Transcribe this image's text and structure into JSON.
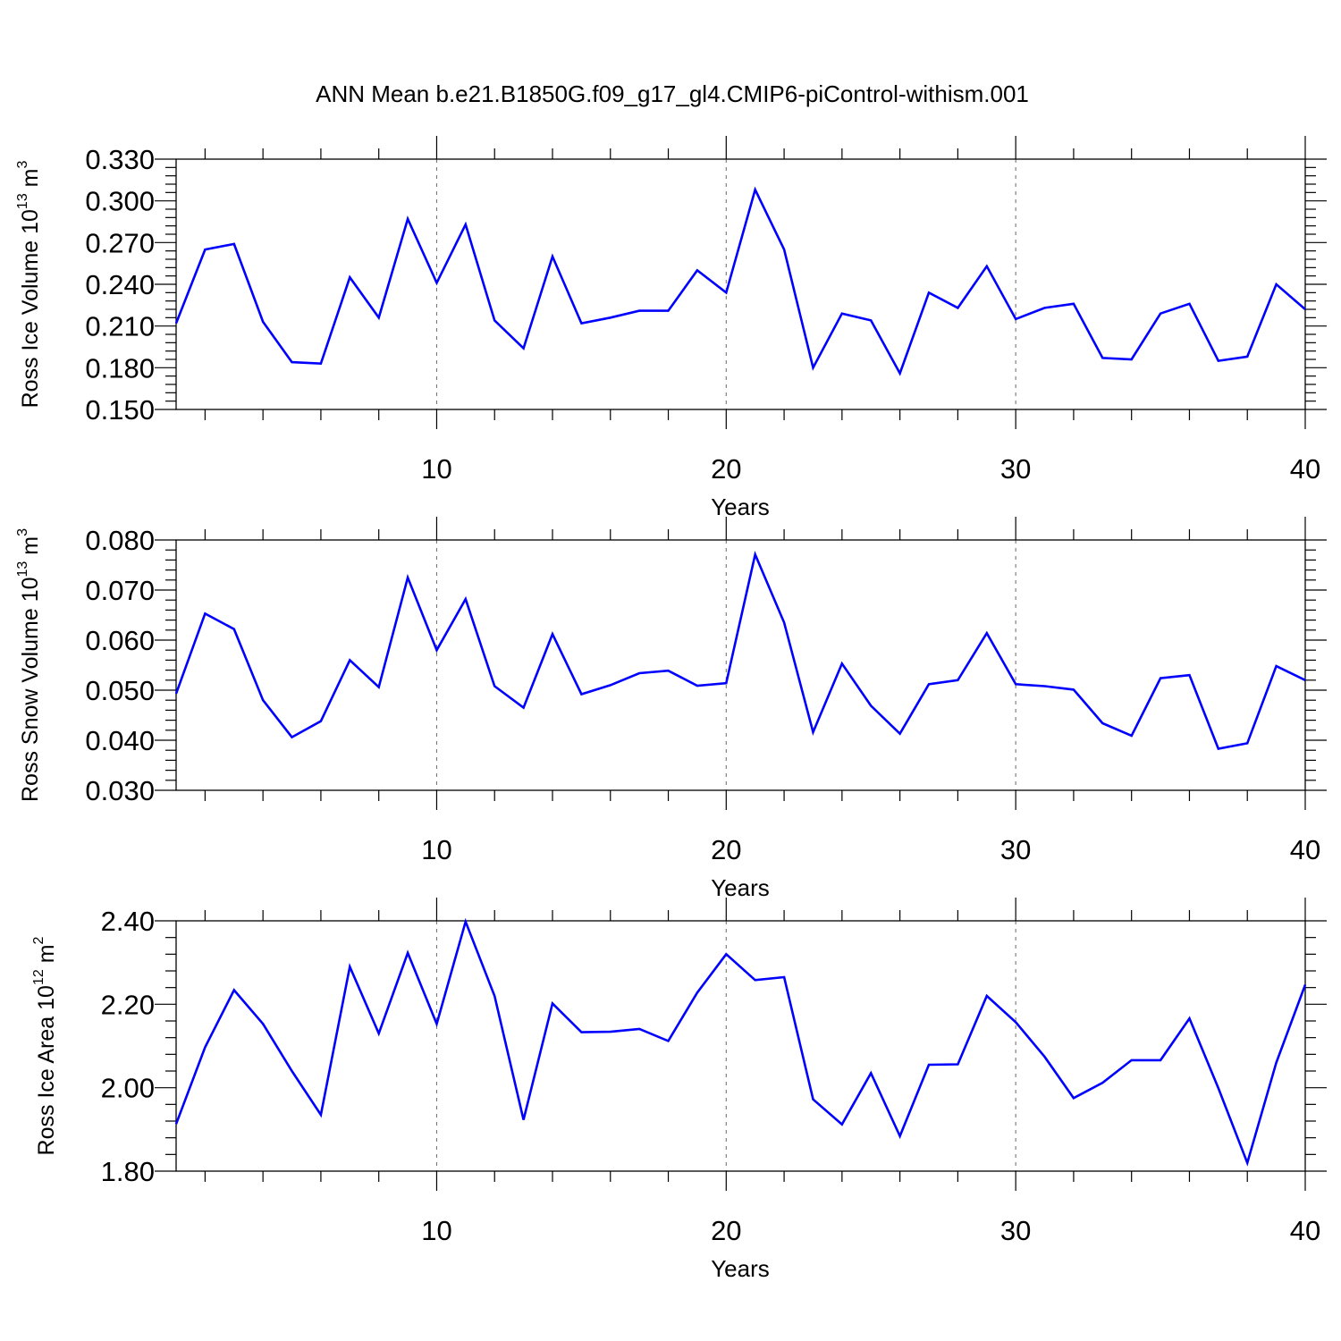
{
  "title": "ANN Mean b.e21.B1850G.f09_g17_gl4.CMIP6-piControl-withism.001",
  "chart_data": [
    {
      "type": "line",
      "xlabel": "Years",
      "ylabel": {
        "prefix": "Ross Ice Volume 10",
        "exp": "13",
        "unit": " m",
        "unit_exp": "3"
      },
      "xlim": [
        1,
        40
      ],
      "ylim": [
        0.15,
        0.33
      ],
      "xticks": [
        "10",
        "20",
        "30",
        "40"
      ],
      "yticks": [
        "0.150",
        "0.180",
        "0.210",
        "0.240",
        "0.270",
        "0.300",
        "0.330"
      ],
      "grid_x": [
        10,
        20,
        30
      ],
      "x": [
        1,
        2,
        3,
        4,
        5,
        6,
        7,
        8,
        9,
        10,
        11,
        12,
        13,
        14,
        15,
        16,
        17,
        18,
        19,
        20,
        21,
        22,
        23,
        24,
        25,
        26,
        27,
        28,
        29,
        30,
        31,
        32,
        33,
        34,
        35,
        36,
        37,
        38,
        39,
        40
      ],
      "series": [
        {
          "color": "#0000ff",
          "values": [
            0.212,
            0.265,
            0.269,
            0.213,
            0.184,
            0.183,
            0.245,
            0.216,
            0.287,
            0.241,
            0.283,
            0.214,
            0.194,
            0.26,
            0.212,
            0.216,
            0.221,
            0.221,
            0.25,
            0.234,
            0.308,
            0.265,
            0.18,
            0.219,
            0.214,
            0.176,
            0.234,
            0.223,
            0.253,
            0.215,
            0.223,
            0.226,
            0.187,
            0.186,
            0.219,
            0.226,
            0.185,
            0.188,
            0.24,
            0.222
          ]
        }
      ]
    },
    {
      "type": "line",
      "xlabel": "Years",
      "ylabel": {
        "prefix": "Ross Snow Volume 10",
        "exp": "13",
        "unit": " m",
        "unit_exp": "3"
      },
      "xlim": [
        1,
        40
      ],
      "ylim": [
        0.03,
        0.08
      ],
      "xticks": [
        "10",
        "20",
        "30",
        "40"
      ],
      "yticks": [
        "0.030",
        "0.040",
        "0.050",
        "0.060",
        "0.070",
        "0.080"
      ],
      "grid_x": [
        10,
        20,
        30
      ],
      "x": [
        1,
        2,
        3,
        4,
        5,
        6,
        7,
        8,
        9,
        10,
        11,
        12,
        13,
        14,
        15,
        16,
        17,
        18,
        19,
        20,
        21,
        22,
        23,
        24,
        25,
        26,
        27,
        28,
        29,
        30,
        31,
        32,
        33,
        34,
        35,
        36,
        37,
        38,
        39,
        40
      ],
      "series": [
        {
          "color": "#0000ff",
          "values": [
            0.0493,
            0.0653,
            0.0622,
            0.048,
            0.0406,
            0.0438,
            0.056,
            0.0506,
            0.0725,
            0.058,
            0.0682,
            0.0508,
            0.0465,
            0.0612,
            0.0492,
            0.051,
            0.0534,
            0.0539,
            0.0509,
            0.0514,
            0.0771,
            0.0635,
            0.0416,
            0.0553,
            0.0469,
            0.0413,
            0.0512,
            0.052,
            0.0614,
            0.0512,
            0.0508,
            0.0501,
            0.0434,
            0.0409,
            0.0524,
            0.053,
            0.0383,
            0.0394,
            0.0548,
            0.052
          ]
        }
      ]
    },
    {
      "type": "line",
      "xlabel": "Years",
      "ylabel": {
        "prefix": "Ross Ice Area 10",
        "exp": "12",
        "unit": " m",
        "unit_exp": "2"
      },
      "xlim": [
        1,
        40
      ],
      "ylim": [
        1.8,
        2.4
      ],
      "xticks": [
        "10",
        "20",
        "30",
        "40"
      ],
      "yticks": [
        "1.80",
        "2.00",
        "2.20",
        "2.40"
      ],
      "grid_x": [
        10,
        20,
        30
      ],
      "x": [
        1,
        2,
        3,
        4,
        5,
        6,
        7,
        8,
        9,
        10,
        11,
        12,
        13,
        14,
        15,
        16,
        17,
        18,
        19,
        20,
        21,
        22,
        23,
        24,
        25,
        26,
        27,
        28,
        29,
        30,
        31,
        32,
        33,
        34,
        35,
        36,
        37,
        38,
        39,
        40
      ],
      "series": [
        {
          "color": "#0000ff",
          "values": [
            1.913,
            2.097,
            2.234,
            2.153,
            2.04,
            1.935,
            2.29,
            2.13,
            2.323,
            2.153,
            2.398,
            2.22,
            1.923,
            2.202,
            2.133,
            2.134,
            2.141,
            2.112,
            2.228,
            2.32,
            2.258,
            2.265,
            1.972,
            1.912,
            2.035,
            1.884,
            2.055,
            2.056,
            2.22,
            2.157,
            2.074,
            1.975,
            2.012,
            2.066,
            2.066,
            2.166,
            1.999,
            1.82,
            2.06,
            2.247
          ]
        }
      ]
    }
  ]
}
